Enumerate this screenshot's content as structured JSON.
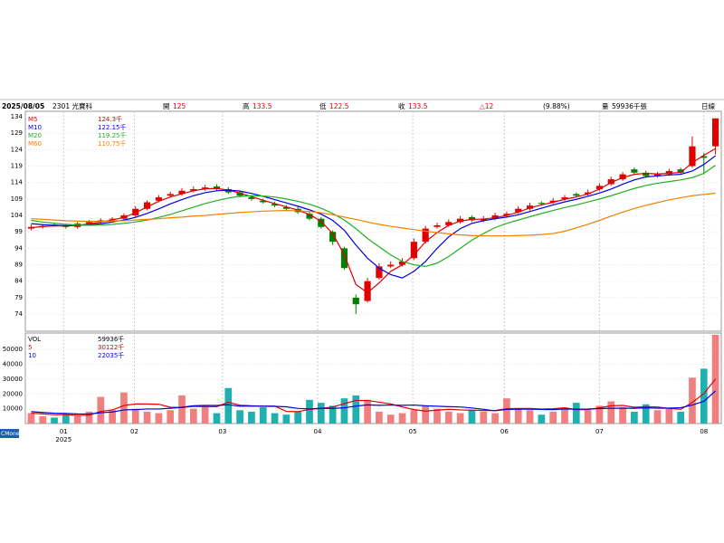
{
  "header": {
    "date": "2025/08/05",
    "stock": "2301 光寶科",
    "fields": [
      {
        "label": "開",
        "value": 125
      },
      {
        "label": "高",
        "value": 133.5
      },
      {
        "label": "低",
        "value": 122.5
      },
      {
        "label": "收",
        "value": 133.5
      }
    ],
    "change": "△12",
    "change_pct": "(9.88%)",
    "volume_label": "量",
    "volume": "59936千張",
    "period": "日線"
  },
  "brand": "CMoney",
  "chart_data": [
    {
      "type": "candlestick",
      "up_color": "#e00000",
      "down_color": "#008000",
      "grid": true,
      "xlim": [
        -0.5,
        59.5
      ],
      "xticks": [
        {
          "value": 2.8,
          "label": "01"
        },
        {
          "value": 8.9,
          "label": "02"
        },
        {
          "value": 16.5,
          "label": "03"
        },
        {
          "value": 24.7,
          "label": "04"
        },
        {
          "value": 32.9,
          "label": "05"
        },
        {
          "value": 40.8,
          "label": "06"
        },
        {
          "value": 49,
          "label": "07"
        },
        {
          "value": 58,
          "label": "08"
        }
      ],
      "year_label": "2025",
      "ylim": [
        68.8,
        135.65
      ],
      "yticks": [
        74,
        79,
        84,
        89,
        94,
        99,
        104,
        109,
        114,
        119,
        124,
        129,
        134
      ],
      "open": [
        100,
        100.5,
        101.2,
        101,
        100.5,
        101.5,
        102,
        102.8,
        103,
        104,
        106,
        108.5,
        110,
        110.5,
        111.5,
        112,
        112.8,
        112,
        111,
        109.5,
        108.5,
        107.5,
        106.5,
        106,
        104.5,
        103,
        99,
        94,
        79,
        78,
        85,
        88.5,
        89,
        91,
        96,
        100.5,
        101,
        102,
        103.5,
        102.5,
        103,
        104,
        105,
        106,
        107.8,
        108,
        109,
        110.5,
        110.5,
        112,
        113.5,
        115,
        118,
        117,
        116,
        116.5,
        118,
        119,
        122,
        125
      ],
      "high": [
        101.2,
        101.3,
        101.8,
        101.5,
        102,
        102.6,
        103.1,
        103.5,
        104.6,
        106.8,
        108.6,
        110.2,
        111.2,
        112.3,
        112.8,
        113.3,
        113.5,
        112.6,
        111.6,
        110.2,
        109.1,
        108.2,
        107.2,
        106.6,
        105.2,
        103.5,
        99.5,
        94.5,
        80,
        85,
        89.5,
        90,
        91,
        97,
        100.8,
        101.8,
        102.8,
        103.8,
        104,
        103.8,
        104.8,
        105.2,
        106.8,
        107.8,
        108.3,
        109.3,
        110.2,
        111,
        111.8,
        113.8,
        115.8,
        117.2,
        118.6,
        117.6,
        117.2,
        118.2,
        118.5,
        128,
        123,
        133.5
      ],
      "low": [
        99.5,
        100,
        100.6,
        100,
        100,
        101,
        101.5,
        102.2,
        102.5,
        103.5,
        105.5,
        108,
        109.5,
        110,
        111,
        111.5,
        111.5,
        110.5,
        109.5,
        108.5,
        107.6,
        106.5,
        105.5,
        104.5,
        102.5,
        100,
        95,
        87.5,
        74,
        77.5,
        84.5,
        88,
        88.5,
        90.5,
        95.5,
        100,
        100.5,
        101.5,
        102,
        102,
        102.5,
        103.5,
        104.5,
        105.5,
        107,
        107.5,
        108.5,
        109.5,
        110,
        111.5,
        113,
        114.5,
        116.5,
        115.5,
        115.5,
        116,
        116.5,
        118.5,
        116.5,
        122.5
      ],
      "close": [
        100.5,
        100.8,
        101,
        100.5,
        101.5,
        102,
        102.5,
        103,
        104,
        106,
        108,
        109.5,
        110.5,
        111.5,
        112,
        112.5,
        112,
        111,
        110,
        109,
        108,
        107,
        106,
        105,
        103,
        100.5,
        96,
        88,
        77,
        84,
        88.5,
        89,
        90,
        96,
        100,
        101,
        102,
        103,
        102.5,
        103,
        104,
        104.5,
        106,
        107,
        107.5,
        108.5,
        109.5,
        110,
        111,
        113,
        115,
        116.5,
        117,
        116,
        116.5,
        117.5,
        117,
        125,
        121.5,
        133.5
      ],
      "series": [
        {
          "name": "M5",
          "color": "#e00000",
          "value_label": "124.3千",
          "values": [
            100.3,
            100.6,
            100.8,
            100.8,
            101,
            101.4,
            102,
            102.6,
            103.4,
            104.8,
            106.6,
            108.3,
            109.6,
            110.6,
            111.5,
            112.1,
            112.2,
            111.7,
            110.8,
            109.7,
            108.6,
            107.6,
            106.6,
            105.6,
            104.3,
            102.2,
            98.5,
            92,
            83,
            80.5,
            83.5,
            87,
            89,
            92,
            96,
            98.8,
            101,
            102.3,
            102.8,
            102.9,
            103.3,
            104,
            105,
            106.3,
            107.2,
            108,
            108.9,
            109.6,
            110.5,
            112,
            114,
            115.5,
            116.5,
            116.8,
            116.6,
            116.8,
            117.1,
            120,
            122.3,
            124.3
          ]
        },
        {
          "name": "M10",
          "color": "#0000e0",
          "value_label": "122.15千",
          "values": [
            101.5,
            101.2,
            101,
            100.9,
            101,
            101.1,
            101.5,
            102,
            102.6,
            103.4,
            104.6,
            106,
            107.5,
            108.8,
            110,
            110.9,
            111.5,
            111.7,
            111.4,
            110.7,
            109.8,
            108.8,
            107.8,
            106.8,
            105.7,
            104.4,
            102.5,
            99.5,
            95,
            91,
            88,
            86,
            85,
            87,
            90,
            94,
            97.5,
            100,
            101.6,
            102.4,
            103,
            103.5,
            104.2,
            105.2,
            106.2,
            107.2,
            108.1,
            108.9,
            109.8,
            110.8,
            112,
            113.5,
            114.8,
            115.7,
            116,
            116.3,
            116.5,
            117.5,
            119.5,
            122.15
          ]
        },
        {
          "name": "M20",
          "color": "#20b020",
          "value_label": "119.25千",
          "values": [
            102.5,
            102,
            101.6,
            101.3,
            101.1,
            101,
            101.1,
            101.3,
            101.6,
            102,
            102.6,
            103.4,
            104.3,
            105.4,
            106.5,
            107.6,
            108.5,
            109.3,
            109.8,
            110,
            109.9,
            109.6,
            109,
            108.3,
            107.4,
            106.2,
            104.6,
            102.6,
            100,
            97,
            94.5,
            92,
            90,
            89,
            88.5,
            89.5,
            91.5,
            94,
            96.5,
            98.5,
            100.3,
            101.6,
            102.6,
            103.6,
            104.6,
            105.5,
            106.4,
            107.2,
            108.1,
            109,
            110,
            111.1,
            112.2,
            113.1,
            113.8,
            114.3,
            114.8,
            115.5,
            116.8,
            119.25
          ]
        },
        {
          "name": "M60",
          "color": "#f08000",
          "value_label": "110.75千",
          "values": [
            103,
            102.8,
            102.6,
            102.4,
            102.3,
            102.2,
            102.2,
            102.3,
            102.4,
            102.6,
            102.8,
            103,
            103.3,
            103.5,
            103.8,
            104,
            104.3,
            104.6,
            104.9,
            105.1,
            105.3,
            105.4,
            105.5,
            105.4,
            105.2,
            104.8,
            104.2,
            103.5,
            102.8,
            102,
            101.3,
            100.7,
            100.2,
            99.7,
            99.2,
            98.8,
            98.4,
            98.1,
            97.9,
            97.8,
            97.8,
            97.8,
            97.9,
            98,
            98.2,
            98.5,
            99.2,
            100.2,
            101.3,
            102.5,
            103.8,
            105,
            106.1,
            107.1,
            107.9,
            108.7,
            109.4,
            110,
            110.4,
            110.75
          ]
        }
      ]
    },
    {
      "type": "volume",
      "name": "VOL",
      "value_label": "59936千",
      "up_color": "#f08080",
      "down_color": "#20b0b0",
      "grid": true,
      "ylim": [
        0,
        61100
      ],
      "yticks": [
        10000,
        20000,
        30000,
        40000,
        50000
      ],
      "values": [
        7000,
        5000,
        4000,
        6000,
        5000,
        8000,
        18000,
        9000,
        21000,
        10000,
        8000,
        7000,
        9000,
        19000,
        10000,
        12000,
        7000,
        24000,
        9000,
        8000,
        11000,
        7000,
        6000,
        8000,
        16000,
        14000,
        12000,
        17000,
        19000,
        16000,
        8000,
        6000,
        7000,
        9000,
        12000,
        10000,
        8000,
        7000,
        9000,
        8000,
        7000,
        17000,
        10000,
        9000,
        6000,
        8000,
        10000,
        14000,
        9000,
        12000,
        15000,
        11000,
        8000,
        13000,
        9000,
        10000,
        8000,
        31000,
        37000,
        59936
      ],
      "series": [
        {
          "name": "5",
          "color": "#e00000",
          "value_label": "30122千",
          "values": [
            7000,
            6500,
            6000,
            6000,
            5500,
            5600,
            8200,
            9200,
            12200,
            13200,
            13200,
            13000,
            11000,
            10800,
            11600,
            11400,
            11400,
            14400,
            12400,
            12000,
            11800,
            11800,
            8200,
            8000,
            9600,
            10200,
            11200,
            13400,
            15600,
            15600,
            14400,
            13200,
            11200,
            9400,
            8400,
            9000,
            9600,
            9200,
            9000,
            8800,
            8800,
            10000,
            10200,
            10200,
            9800,
            10000,
            10600,
            9400,
            9400,
            10600,
            12000,
            12200,
            11000,
            11400,
            11200,
            10200,
            9600,
            14200,
            20200,
            30122
          ]
        },
        {
          "name": "10",
          "color": "#0000e0",
          "value_label": "22035千",
          "values": [
            8000,
            7500,
            7000,
            6800,
            6500,
            6400,
            7300,
            7800,
            9200,
            9400,
            9800,
            9800,
            10300,
            11000,
            12000,
            12200,
            12200,
            12700,
            11700,
            11800,
            11700,
            11600,
            11300,
            10200,
            9900,
            10300,
            10200,
            10600,
            11800,
            12600,
            12300,
            12500,
            12300,
            12500,
            12000,
            11700,
            11400,
            11200,
            10500,
            9600,
            8600,
            9500,
            9700,
            9700,
            9500,
            9400,
            9800,
            9700,
            9800,
            10100,
            10300,
            10300,
            10300,
            10600,
            10400,
            10400,
            10700,
            12500,
            15000,
            22035
          ]
        }
      ]
    }
  ]
}
